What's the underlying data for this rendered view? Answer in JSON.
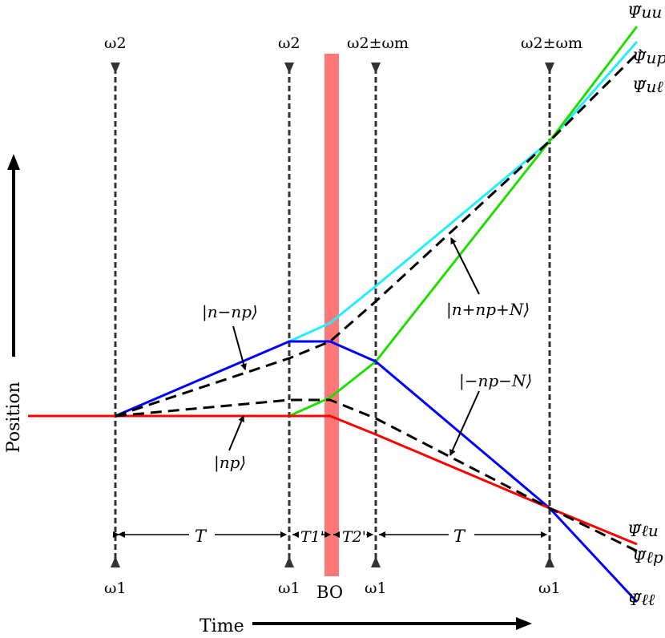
{
  "axes": {
    "x_label": "Time",
    "y_label": "Position"
  },
  "pulses": {
    "top": [
      "ω2",
      "ω2",
      "ω2±ωm",
      "ω2±ωm"
    ],
    "bottom": [
      "ω1",
      "ω1",
      "ω1",
      "ω1"
    ]
  },
  "bo_label": "BO",
  "intervals": [
    "T",
    "T1'",
    "T2'",
    "T"
  ],
  "states": {
    "n_minus_np": "|n−np⟩",
    "np": "|np⟩",
    "n_plus_np_plus_N": "|n+np+N⟩",
    "minus_np_minus_N": "|−np−N⟩"
  },
  "outputs": {
    "uu": "Ψ̃uu",
    "up": "Ψ̃up",
    "ul": "Ψ̃uℓ",
    "lu": "Ψ̃ℓu",
    "lp": "Ψ̃ℓp",
    "ll": "Ψ̃ℓℓ"
  },
  "colors": {
    "red": "#ff0000",
    "blue": "#0000ff",
    "green": "#22dd00",
    "cyan": "#22eeff",
    "bo_band": "#ff7777",
    "dashed": "#000000",
    "pulse_line": "#333333"
  }
}
